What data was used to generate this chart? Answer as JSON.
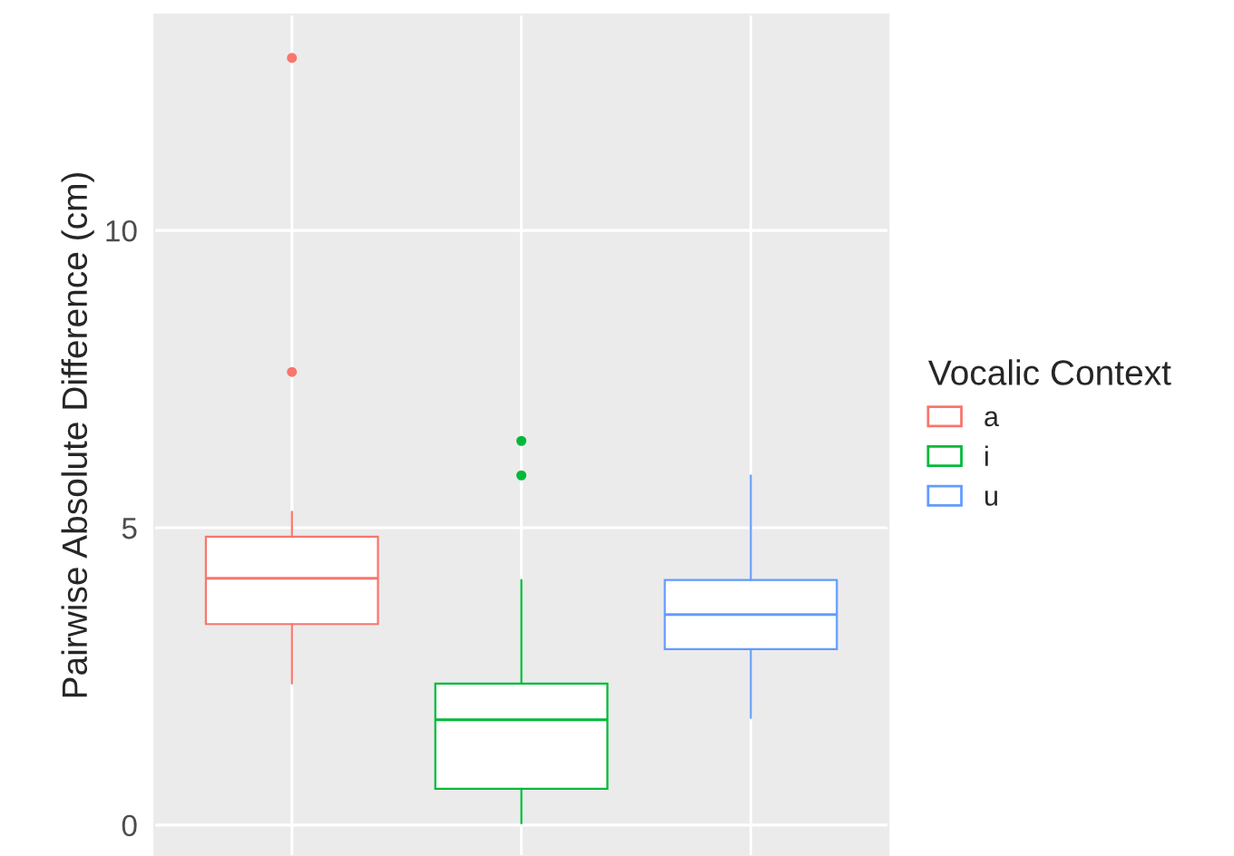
{
  "chart_data": {
    "type": "box",
    "ylabel": "Pairwise Absolute Difference (cm)",
    "legend_title": "Vocalic Context",
    "categories": [
      null,
      null,
      null
    ],
    "ylim": [
      -0.52,
      13.63
    ],
    "yticks": [
      0,
      5,
      10
    ],
    "grid": true,
    "legend": "right",
    "tick_labels": "y",
    "series": [
      {
        "name": "a",
        "color": "#f8766d",
        "boxes": [
          {
            "low": 2.38,
            "q1": 3.38,
            "median": 4.15,
            "q3": 4.85,
            "high": 5.27,
            "outliers": [
              7.62,
              12.9
            ]
          },
          null,
          null
        ]
      },
      {
        "name": "i",
        "color": "#00ba38",
        "boxes": [
          null,
          {
            "low": 0.03,
            "q1": 0.61,
            "median": 1.77,
            "q3": 2.38,
            "high": 4.12,
            "outliers": [
              5.88,
              6.46
            ]
          },
          null
        ]
      },
      {
        "name": "u",
        "color": "#619cff",
        "boxes": [
          null,
          null,
          {
            "low": 1.8,
            "q1": 2.96,
            "median": 3.54,
            "q3": 4.12,
            "high": 5.88
          }
        ]
      }
    ]
  }
}
